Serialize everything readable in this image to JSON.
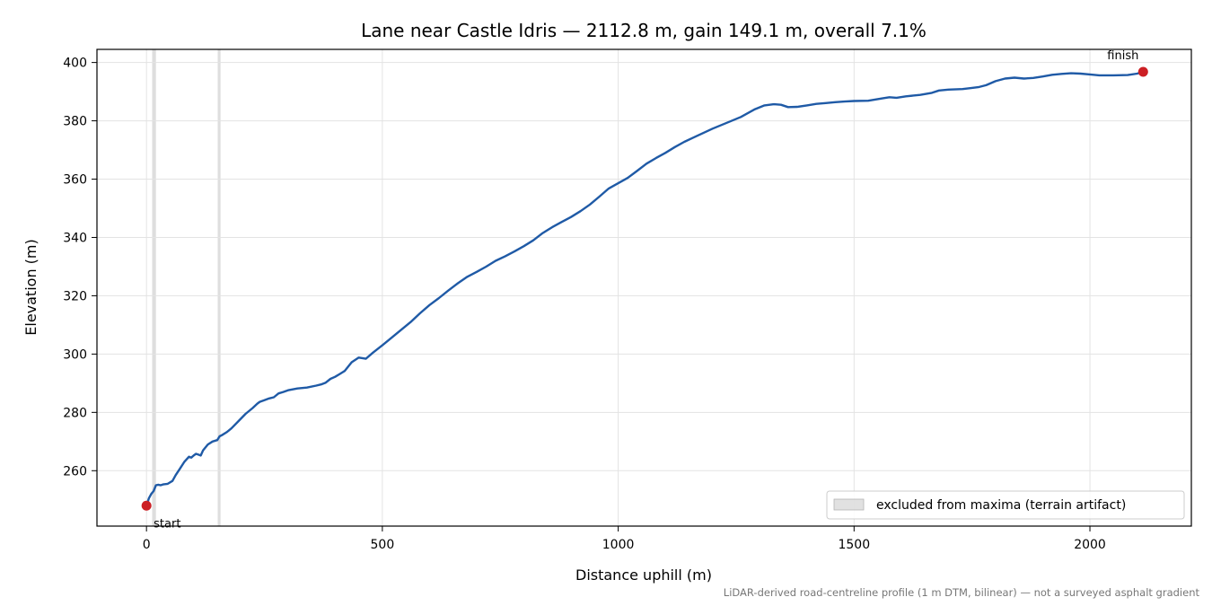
{
  "chart_data": {
    "type": "line",
    "title": "Lane near Castle Idris — 2112.8 m, gain 149.1 m, overall 7.1%",
    "xlabel": "Distance uphill (m)",
    "ylabel": "Elevation (m)",
    "xlim": [
      -105,
      2215
    ],
    "ylim": [
      241,
      404.5
    ],
    "xticks": [
      0,
      500,
      1000,
      1500,
      2000
    ],
    "yticks": [
      260,
      280,
      300,
      320,
      340,
      360,
      380,
      400
    ],
    "grid": true,
    "series": [
      {
        "color": "#1f5aa6",
        "x": [
          0,
          5,
          10,
          15,
          20,
          25,
          30,
          35,
          45,
          55,
          62,
          70,
          80,
          90,
          95,
          100,
          105,
          110,
          115,
          120,
          130,
          140,
          150,
          155,
          160,
          170,
          180,
          195,
          210,
          225,
          235,
          240,
          250,
          260,
          270,
          280,
          290,
          300,
          320,
          340,
          360,
          370,
          380,
          390,
          400,
          410,
          420,
          435,
          450,
          465,
          480,
          500,
          530,
          560,
          580,
          600,
          620,
          640,
          660,
          680,
          700,
          720,
          740,
          760,
          780,
          800,
          820,
          840,
          860,
          880,
          900,
          920,
          940,
          960,
          980,
          1000,
          1020,
          1040,
          1060,
          1080,
          1100,
          1120,
          1140,
          1160,
          1180,
          1200,
          1230,
          1260,
          1290,
          1310,
          1330,
          1345,
          1360,
          1380,
          1400,
          1420,
          1440,
          1460,
          1480,
          1500,
          1530,
          1560,
          1575,
          1590,
          1610,
          1640,
          1665,
          1680,
          1700,
          1730,
          1750,
          1765,
          1780,
          1800,
          1820,
          1840,
          1860,
          1880,
          1900,
          1920,
          1940,
          1960,
          1980,
          2000,
          2020,
          2050,
          2080,
          2100,
          2112.8
        ],
        "y": [
          248,
          250.5,
          252,
          253,
          255,
          255.2,
          255,
          255.3,
          255.5,
          256.5,
          258.5,
          260.5,
          263,
          264.8,
          264.5,
          265.2,
          265.8,
          265.5,
          265.2,
          267,
          269,
          270,
          270.5,
          271.8,
          272.2,
          273.2,
          274.5,
          277,
          279.5,
          281.5,
          283,
          283.6,
          284.2,
          284.8,
          285.2,
          286.5,
          287,
          287.6,
          288.2,
          288.5,
          289.2,
          289.6,
          290.2,
          291.5,
          292.2,
          293.2,
          294.2,
          297.2,
          298.8,
          298.4,
          300.5,
          303,
          307,
          311,
          314,
          316.8,
          319.2,
          321.8,
          324.3,
          326.5,
          328.2,
          330,
          332,
          333.5,
          335.2,
          337,
          339,
          341.5,
          343.5,
          345.3,
          347,
          349,
          351.3,
          354,
          356.8,
          358.6,
          360.4,
          362.8,
          365.3,
          367.2,
          369,
          371,
          372.8,
          374.3,
          375.8,
          377.3,
          379.3,
          381.3,
          384,
          385.3,
          385.7,
          385.5,
          384.7,
          384.8,
          385.3,
          385.8,
          386.1,
          386.4,
          386.6,
          386.8,
          386.9,
          387.7,
          388.1,
          387.9,
          388.4,
          388.9,
          389.6,
          390.4,
          390.7,
          390.9,
          391.3,
          391.6,
          392.2,
          393.6,
          394.5,
          394.8,
          394.5,
          394.7,
          395.2,
          395.8,
          396.1,
          396.3,
          396.2,
          395.9,
          395.6,
          395.6,
          395.7,
          396.2,
          396.8
        ]
      }
    ],
    "endpoints": [
      {
        "label": "start",
        "x": 0,
        "y": 248
      },
      {
        "label": "finish",
        "x": 2112.8,
        "y": 396.8
      }
    ],
    "marker_color": "#cc1f24",
    "excluded_bands": [
      [
        12,
        20
      ],
      [
        151,
        157
      ]
    ],
    "excluded_color": "#c8c8c8",
    "legend": {
      "position": "lower-right",
      "label": "excluded from maxima (terrain artifact)"
    },
    "footnote": "LiDAR-derived road-centreline profile (1 m DTM, bilinear) — not a surveyed asphalt gradient"
  }
}
